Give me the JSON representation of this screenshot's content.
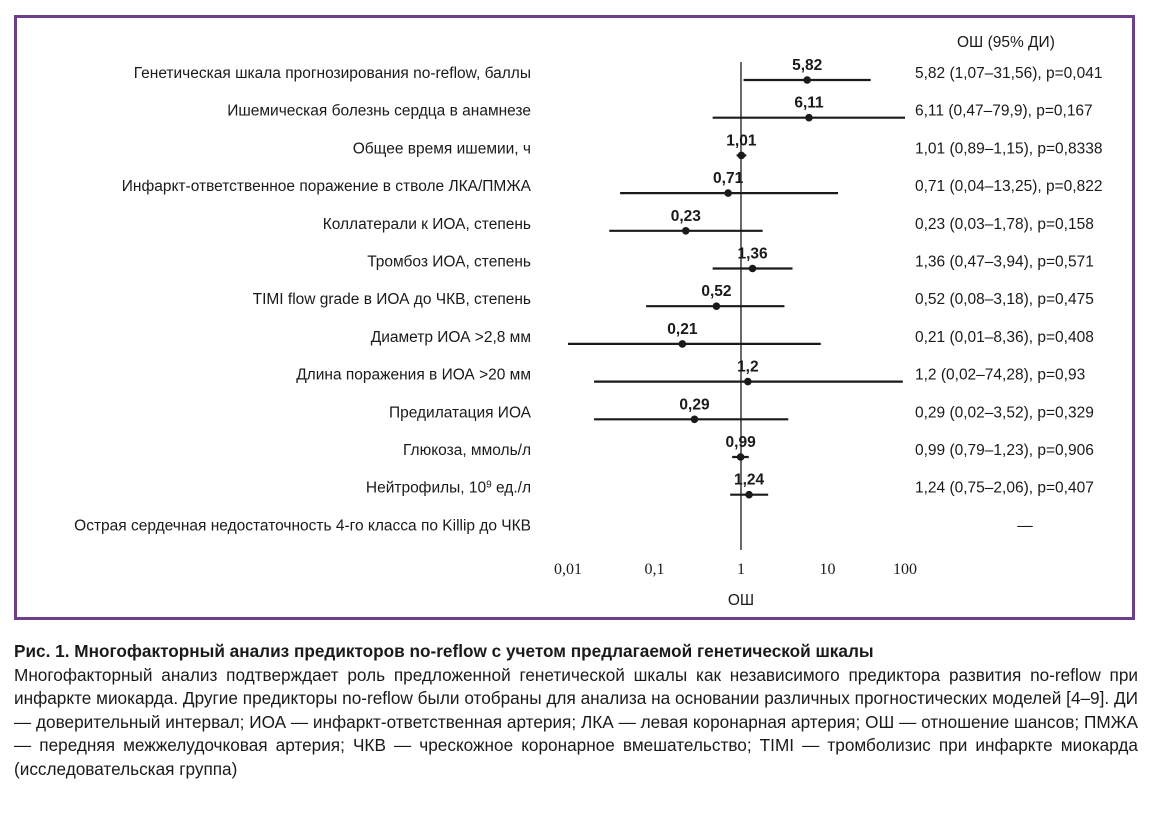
{
  "chart_data": {
    "type": "forest",
    "scale": "log",
    "or_header": "ОШ (95% ДИ)",
    "xlabel": "ОШ",
    "xticks": [
      {
        "value": 0.01,
        "label": "0,01"
      },
      {
        "value": 0.1,
        "label": "0,1"
      },
      {
        "value": 1,
        "label": "1"
      },
      {
        "value": 10,
        "label": "10"
      },
      {
        "value": 100,
        "label": "100"
      }
    ],
    "rows": [
      {
        "label": "Генетическая шкала прогнозирования no-reflow, баллы",
        "or": 5.82,
        "lo": 1.07,
        "hi": 31.56,
        "or_label": "5,82",
        "ci_text": "5,82 (1,07–31,56), p=0,041"
      },
      {
        "label": "Ишемическая болезнь сердца в анамнезе",
        "or": 6.11,
        "lo": 0.47,
        "hi": 79.9,
        "or_label": "6,11",
        "ci_text": "6,11 (0,47–79,9), p=0,167"
      },
      {
        "label": "Общее время ишемии, ч",
        "or": 1.01,
        "lo": 0.89,
        "hi": 1.15,
        "or_label": "1,01",
        "ci_text": "1,01 (0,89–1,15), p=0,8338"
      },
      {
        "label": "Инфаркт-ответственное поражение в стволе ЛКА/ПМЖА",
        "or": 0.71,
        "lo": 0.04,
        "hi": 13.25,
        "or_label": "0,71",
        "ci_text": "0,71 (0,04–13,25), p=0,822"
      },
      {
        "label": "Коллатерали к ИОА, степень",
        "or": 0.23,
        "lo": 0.03,
        "hi": 1.78,
        "or_label": "0,23",
        "ci_text": "0,23 (0,03–1,78), p=0,158"
      },
      {
        "label": "Тромбоз ИОА, степень",
        "or": 1.36,
        "lo": 0.47,
        "hi": 3.94,
        "or_label": "1,36",
        "ci_text": "1,36 (0,47–3,94), p=0,571"
      },
      {
        "label": "TIMI flow grade в ИОА до ЧКВ, степень",
        "or": 0.52,
        "lo": 0.08,
        "hi": 3.18,
        "or_label": "0,52",
        "ci_text": "0,52 (0,08–3,18), p=0,475"
      },
      {
        "label": "Диаметр ИОА >2,8 мм",
        "or": 0.21,
        "lo": 0.01,
        "hi": 8.36,
        "or_label": "0,21",
        "ci_text": "0,21 (0,01–8,36), p=0,408"
      },
      {
        "label": "Длина поражения в ИОА >20 мм",
        "or": 1.2,
        "lo": 0.02,
        "hi": 74.28,
        "or_label": "1,2",
        "ci_text": "1,2 (0,02–74,28), p=0,93"
      },
      {
        "label": "Предилатация ИОА",
        "or": 0.29,
        "lo": 0.02,
        "hi": 3.52,
        "or_label": "0,29",
        "ci_text": "0,29 (0,02–3,52), p=0,329"
      },
      {
        "label": "Глюкоза, ммоль/л",
        "or": 0.99,
        "lo": 0.79,
        "hi": 1.23,
        "or_label": "0,99",
        "ci_text": "0,99 (0,79–1,23), p=0,906"
      },
      {
        "label": "Нейтрофилы, 10",
        "label_sup": "9",
        "label_suffix": " ед./л",
        "or": 1.24,
        "lo": 0.75,
        "hi": 2.06,
        "or_label": "1,24",
        "ci_text": "1,24 (0,75–2,06), p=0,407"
      },
      {
        "label": "Острая сердечная недостаточность 4-го класса по Killip до ЧКВ",
        "or": null,
        "lo": null,
        "hi": null,
        "or_label": "",
        "ci_text": "—"
      }
    ]
  },
  "caption": {
    "title": "Рис. 1. Многофакторный анализ предикторов no-reflow с учетом предлагаемой генетической шкалы",
    "body": "Многофакторный анализ подтверждает роль предложенной генетической шкалы как независимого предиктора развития no-reflow при инфаркте миокарда. Другие предикторы no-reflow были отобраны для анализа на основании различных прогностических моделей [4–9]. ДИ — доверительный интервал; ИОА — инфаркт-ответственная артерия; ЛКА — левая коронарная артерия; ОШ — отношение шансов; ПМЖА — передняя межжелудочковая артерия; ЧКВ — чрескожное коронарное вмешательство; TIMI — тромболизис при инфаркте миокарда (исследовательская группа)"
  },
  "colors": {
    "frame": "#6b3f8e",
    "ink": "#1a1a1a"
  }
}
